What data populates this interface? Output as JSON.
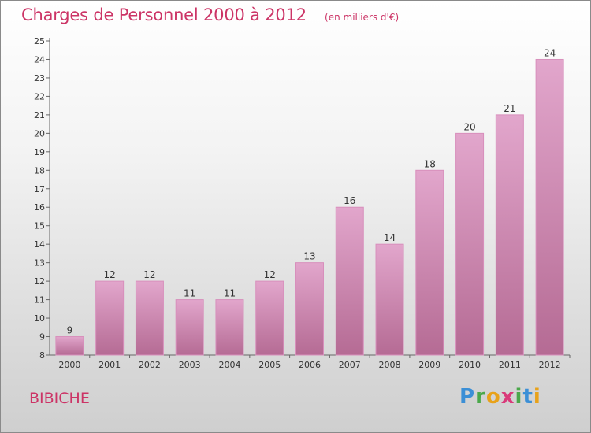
{
  "header": {
    "title": "Charges de Personnel 2000 à 2012",
    "subtitle": "(en milliers d'€)"
  },
  "footer": {
    "place": "BIBICHE",
    "logo": "Proxiti"
  },
  "colors": {
    "title": "#cc3466",
    "bar_top": "#e2a6cc",
    "bar_bottom": "#b56b94"
  },
  "chart_data": {
    "type": "bar",
    "categories": [
      "2000",
      "2001",
      "2002",
      "2003",
      "2004",
      "2005",
      "2006",
      "2007",
      "2008",
      "2009",
      "2010",
      "2011",
      "2012"
    ],
    "values": [
      9,
      12,
      12,
      11,
      11,
      12,
      13,
      16,
      14,
      18,
      20,
      21,
      24
    ],
    "data_labels": [
      "9",
      "12",
      "12",
      "11",
      "11",
      "12",
      "13",
      "16",
      "14",
      "18",
      "20",
      "21",
      "24"
    ],
    "title": "Charges de Personnel 2000 à 2012",
    "unit": "(en milliers d'€)",
    "xlabel": "",
    "ylabel": "",
    "ylim": [
      8,
      25
    ],
    "yticks": [
      8,
      9,
      10,
      11,
      12,
      13,
      14,
      15,
      16,
      17,
      18,
      19,
      20,
      21,
      22,
      23,
      24,
      25
    ],
    "grid": false,
    "legend": "none"
  }
}
